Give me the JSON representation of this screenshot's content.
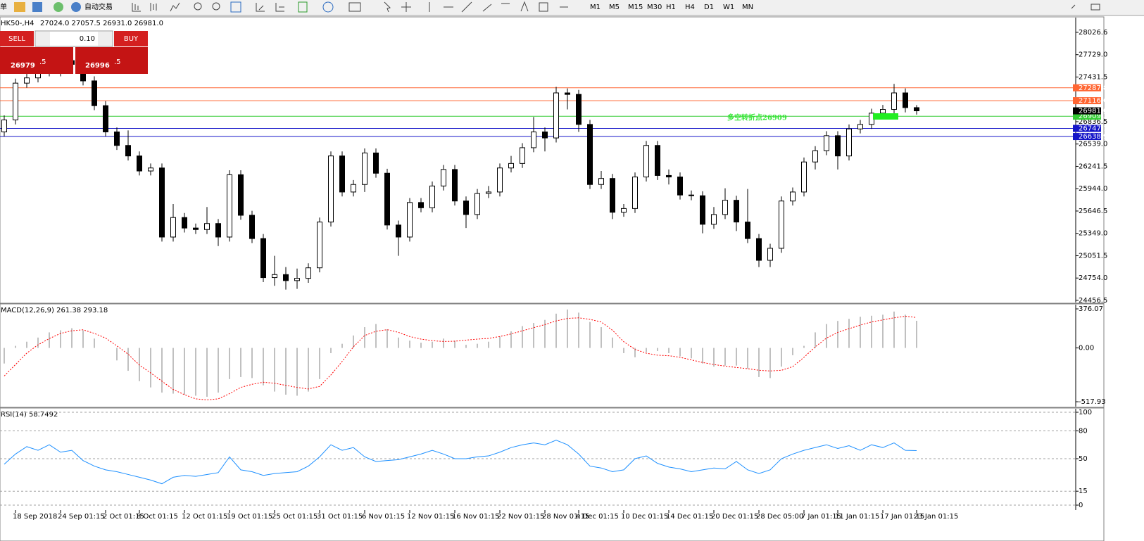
{
  "toolbar": {
    "menu_stub": "单",
    "auto_trade": "自动交易",
    "timeframes": [
      "M1",
      "M5",
      "M15",
      "M30",
      "H1",
      "H4",
      "D1",
      "W1",
      "MN"
    ]
  },
  "trade_panel": {
    "sell": "SELL",
    "lot": "0.10",
    "buy": "BUY",
    "sell_price": "26979",
    "sell_pips": ".5",
    "buy_price": "26996",
    "buy_pips": ".5"
  },
  "chart_data": [
    {
      "type": "candlestick",
      "title": "HK50-,H4",
      "subtitle": "27024.0 27057.5 26931.0 26981.0",
      "categories": [
        null,
        "18 Sep 2018",
        null,
        null,
        null,
        "24 Sep 01:15",
        null,
        null,
        null,
        "2 Oct 01:15",
        null,
        null,
        "8 Oct 01:15",
        null,
        null,
        null,
        "12 Oct 01:15",
        null,
        null,
        null,
        "19 Oct 01:15",
        null,
        null,
        null,
        "25 Oct 01:15",
        null,
        null,
        null,
        "31 Oct 01:15",
        null,
        null,
        null,
        "6 Nov 01:15",
        null,
        null,
        null,
        "12 Nov 01:15",
        null,
        null,
        null,
        "16 Nov 01:15",
        null,
        null,
        null,
        "22 Nov 01:15",
        null,
        null,
        null,
        "28 Nov 01:15",
        null,
        null,
        "4 Dec 01:15",
        null,
        null,
        null,
        "10 Dec 01:15",
        null,
        null,
        null,
        "14 Dec 01:15",
        null,
        null,
        null,
        "20 Dec 01:15",
        null,
        null,
        null,
        "28 Dec 05:00",
        null,
        null,
        null,
        "7 Jan 01:15",
        null,
        null,
        "11 Jan 01:15",
        null,
        null,
        null,
        "17 Jan 01:15",
        null,
        null,
        "23 Jan 01:15"
      ],
      "open": [
        26700,
        26860,
        27350,
        27420,
        27550,
        27500,
        27650,
        27600,
        27380,
        27050,
        26700,
        26520,
        26380,
        26180,
        26220,
        25300,
        25560,
        25420,
        25400,
        25480,
        25300,
        26130,
        25590,
        25280,
        24760,
        24800,
        24720,
        24750,
        24890,
        25500,
        26380,
        25900,
        26000,
        26420,
        26150,
        25460,
        25300,
        25760,
        25690,
        25980,
        26200,
        25780,
        25600,
        25880,
        25900,
        26220,
        26280,
        26490,
        26700,
        26620,
        27220,
        27200,
        26800,
        26000,
        26080,
        25630,
        25680,
        26100,
        26520,
        26120,
        26100,
        25860,
        25850,
        25470,
        25600,
        25790,
        25500,
        25280,
        24990,
        25150,
        25780,
        25900,
        26300,
        26450,
        26650,
        26380,
        26740,
        26800,
        26950,
        27000,
        27220,
        27024
      ],
      "high": [
        26920,
        27410,
        27480,
        27610,
        27610,
        27710,
        27710,
        27660,
        27440,
        27110,
        26760,
        26720,
        26440,
        26280,
        26280,
        25740,
        25620,
        25480,
        25700,
        25540,
        26190,
        26190,
        25650,
        25340,
        25050,
        24900,
        24880,
        24950,
        25560,
        26440,
        26440,
        26060,
        26480,
        26480,
        26210,
        25520,
        25820,
        25820,
        26040,
        26260,
        26260,
        25840,
        25940,
        25980,
        26280,
        26380,
        26550,
        26900,
        26760,
        27300,
        27280,
        27260,
        26860,
        26180,
        26140,
        25740,
        26160,
        26580,
        26580,
        26200,
        26160,
        25920,
        25910,
        25700,
        25950,
        25850,
        25940,
        25340,
        25210,
        25840,
        25960,
        26360,
        26510,
        26710,
        26710,
        26800,
        26860,
        27010,
        27060,
        27340,
        27280,
        27057.5
      ],
      "low": [
        26640,
        26800,
        27290,
        27360,
        27440,
        27440,
        27540,
        27320,
        26990,
        26640,
        26460,
        26320,
        26120,
        26120,
        25240,
        25240,
        25360,
        25340,
        25340,
        25180,
        25240,
        25530,
        25220,
        24700,
        24650,
        24600,
        24610,
        24690,
        24830,
        25440,
        25840,
        25840,
        25900,
        26090,
        25400,
        25050,
        25240,
        25630,
        25630,
        25920,
        25720,
        25420,
        25540,
        25820,
        25840,
        26160,
        26220,
        26430,
        26440,
        26560,
        27000,
        26700,
        25940,
        25940,
        25540,
        25570,
        25620,
        26040,
        26060,
        26000,
        25800,
        25790,
        25350,
        25410,
        25540,
        25380,
        25220,
        24900,
        24900,
        25090,
        25720,
        25840,
        26200,
        26390,
        26200,
        26320,
        26680,
        26740,
        26890,
        26940,
        26960,
        26931
      ],
      "close": [
        26860,
        27350,
        27420,
        27550,
        27500,
        27650,
        27600,
        27380,
        27050,
        26700,
        26520,
        26380,
        26180,
        26220,
        25300,
        25560,
        25420,
        25400,
        25480,
        25300,
        26130,
        25590,
        25280,
        24760,
        24800,
        24720,
        24750,
        24890,
        25500,
        26380,
        25900,
        26000,
        26420,
        26150,
        25460,
        25300,
        25760,
        25690,
        25980,
        26200,
        25780,
        25600,
        25880,
        25900,
        26220,
        26280,
        26490,
        26700,
        26620,
        27220,
        27200,
        26800,
        26000,
        26080,
        25630,
        25680,
        26100,
        26520,
        26120,
        26100,
        25860,
        25850,
        25470,
        25600,
        25790,
        25500,
        25280,
        24990,
        25150,
        25780,
        25900,
        26300,
        26450,
        26650,
        26380,
        26740,
        26800,
        26950,
        27000,
        27220,
        27024,
        26981
      ],
      "up_color": "#ffffff",
      "down_color": "#000000",
      "ylim": [
        24428,
        28223
      ],
      "yticks": [
        28026.6,
        {
          "value": 27729,
          "label": "27729.0"
        },
        27431.5,
        26836.5,
        {
          "value": 26539,
          "label": "26539.0"
        },
        26241.5,
        {
          "value": 25944,
          "label": "25944.0"
        },
        25646.5,
        {
          "value": 25349,
          "label": "25349.0"
        },
        25051.5,
        {
          "value": 24754,
          "label": "24754.0"
        },
        24456.5
      ],
      "levels": [
        {
          "value": 27287.8,
          "color": "#ff6633"
        },
        {
          "value": 27116.6,
          "color": "#ff6633"
        },
        {
          "value": 26909.3,
          "color": "#33cc33"
        },
        {
          "value": 26747.1,
          "color": "#1515c8"
        },
        {
          "value": 26638.9,
          "color": "#1515c8"
        },
        {
          "value": {
            "value": 26981,
            "label": "26981.0"
          },
          "color": "#000000"
        }
      ],
      "annotation": "多空转折点26909"
    },
    {
      "type": "macd",
      "title": "MACD(12,26,9) 261.38 293.18",
      "values": [
        -150,
        20,
        60,
        100,
        150,
        170,
        190,
        170,
        90,
        0,
        -120,
        -220,
        -320,
        -380,
        -430,
        -440,
        -450,
        -460,
        -470,
        -430,
        -300,
        -280,
        -290,
        -360,
        -420,
        -450,
        -460,
        -420,
        -300,
        -50,
        40,
        120,
        200,
        230,
        180,
        100,
        70,
        50,
        60,
        90,
        70,
        30,
        40,
        60,
        110,
        160,
        210,
        240,
        270,
        330,
        370,
        340,
        250,
        200,
        100,
        -50,
        -90,
        -40,
        -30,
        -50,
        -80,
        -100,
        -150,
        -180,
        -170,
        -170,
        -200,
        -280,
        -290,
        -180,
        -70,
        20,
        150,
        230,
        260,
        280,
        300,
        310,
        320,
        350,
        320,
        261.38
      ],
      "color": "#c0c0c0",
      "signal": [
        -270,
        -160,
        -50,
        30,
        90,
        140,
        165,
        175,
        140,
        95,
        20,
        -60,
        -165,
        -240,
        -320,
        -400,
        -450,
        -490,
        -500,
        -490,
        -440,
        -380,
        -350,
        -330,
        -340,
        -360,
        -380,
        -395,
        -370,
        -260,
        -130,
        10,
        120,
        160,
        176,
        150,
        110,
        85,
        70,
        62,
        65,
        75,
        85,
        92,
        110,
        135,
        165,
        195,
        225,
        260,
        284,
        290,
        275,
        250,
        170,
        60,
        -15,
        -50,
        -70,
        -75,
        -90,
        -115,
        -140,
        -160,
        -175,
        -188,
        -200,
        -215,
        -222,
        -215,
        -180,
        -90,
        10,
        95,
        150,
        185,
        220,
        250,
        270,
        290,
        305,
        293.18
      ],
      "signal_color": "#ff0000",
      "ylim": [
        -565,
        417
      ],
      "yticks": [
        376.07,
        {
          "value": 0,
          "label": "0.00"
        },
        -517.93
      ]
    },
    {
      "type": "line",
      "title": "RSI(14) 58.7492",
      "values": [
        44,
        55,
        63,
        59,
        65,
        57,
        59,
        48,
        42,
        38,
        36,
        33,
        30,
        27,
        23,
        30,
        32,
        31,
        33,
        35,
        52,
        38,
        36,
        32,
        34,
        35,
        36,
        42,
        52,
        65,
        59,
        62,
        52,
        47,
        48,
        49,
        52,
        55,
        59,
        55,
        50,
        50,
        52,
        53,
        57,
        62,
        65,
        67,
        65,
        70,
        65,
        55,
        42,
        40,
        36,
        38,
        50,
        53,
        45,
        41,
        39,
        36,
        38,
        40,
        39,
        47,
        38,
        34,
        38,
        50,
        55,
        59,
        62,
        65,
        61,
        64,
        59,
        65,
        62,
        67,
        59,
        58.7492
      ],
      "color": "#1e90ff",
      "ylim": [
        -5.3,
        103.8
      ],
      "yticks": [
        100,
        80,
        50,
        15,
        0
      ],
      "grid": true
    }
  ]
}
